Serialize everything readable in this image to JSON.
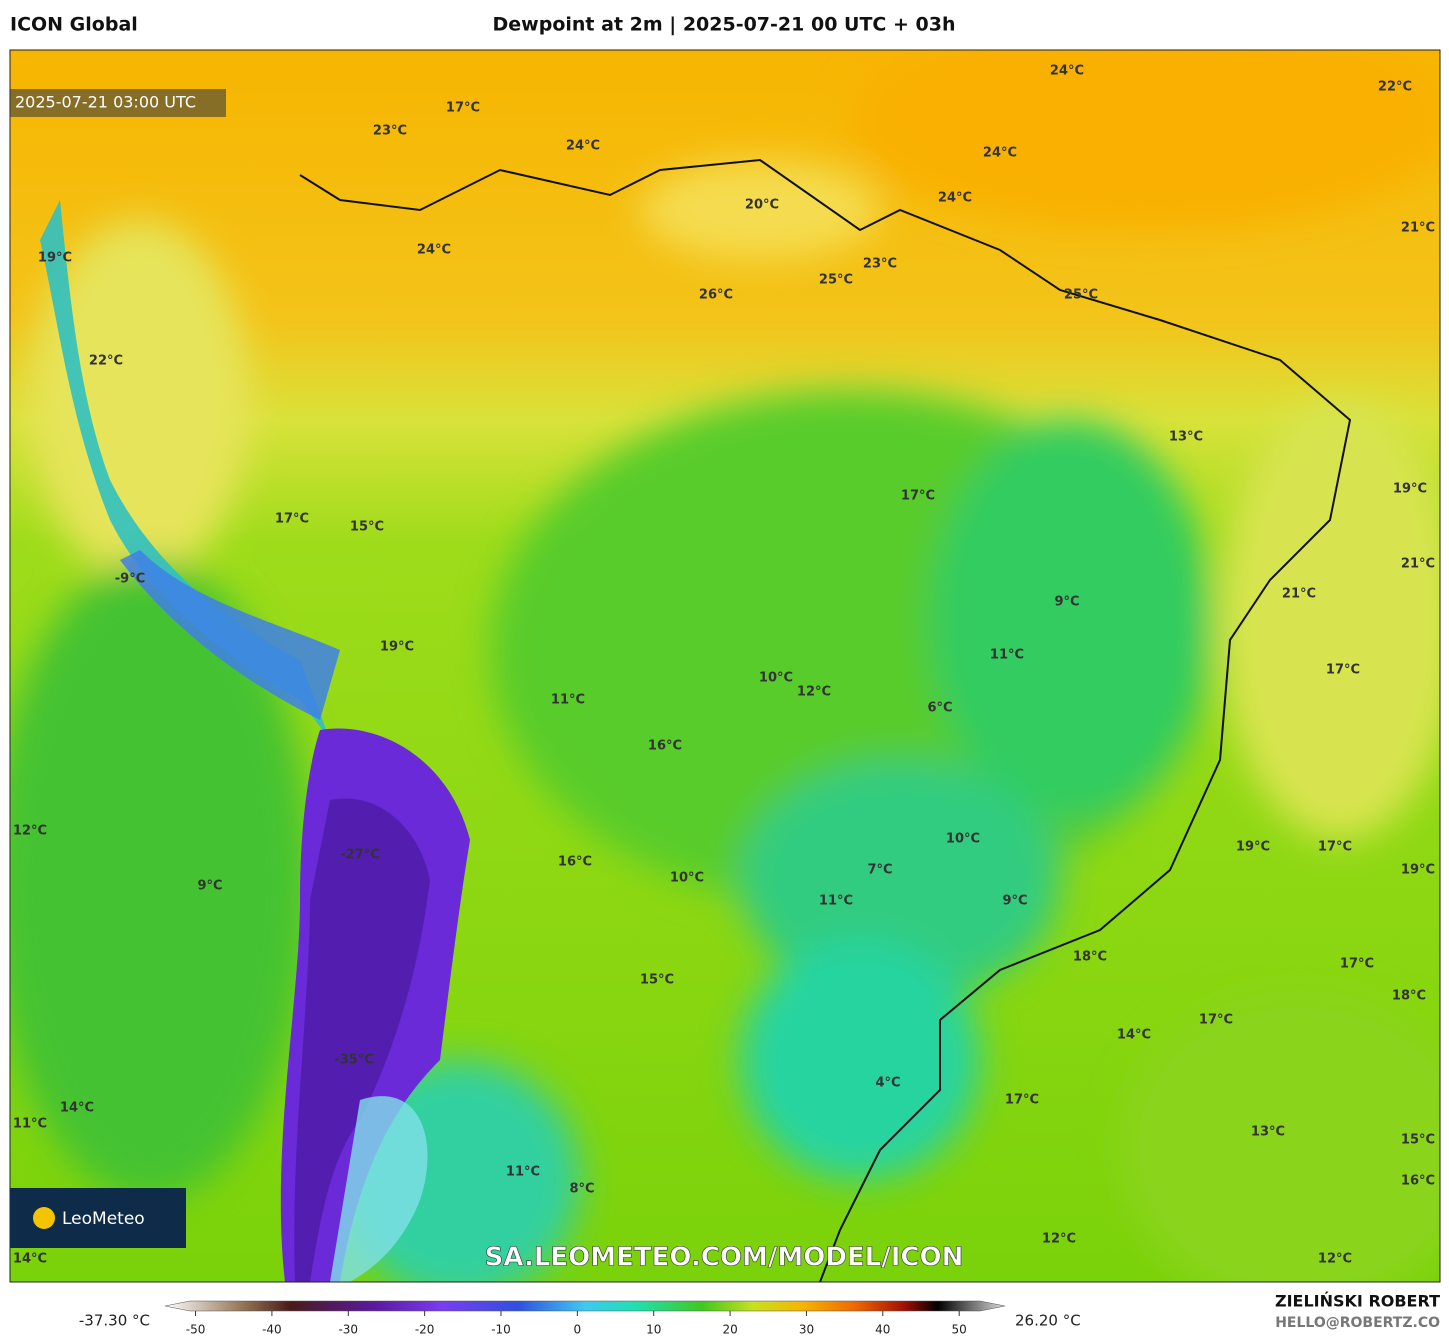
{
  "header": {
    "source": "ICON Global",
    "title": "Dewpoint at 2m | 2025-07-21 00 UTC + 03h"
  },
  "map": {
    "valid_time": "2025-07-21 03:00 UTC",
    "watermark": "SA.LEOMETEO.COM/MODEL/ICON",
    "logo": "LeoMeteo",
    "labels": [
      "17°C",
      "23°C",
      "24°C",
      "24°C",
      "22°C",
      "24°C",
      "24°C",
      "20°C",
      "21°C",
      "24°C",
      "19°C",
      "23°C",
      "25°C",
      "26°C",
      "25°C",
      "22°C",
      "13°C",
      "17°C",
      "19°C",
      "17°C",
      "15°C",
      "21°C",
      "-9°C",
      "21°C",
      "9°C",
      "19°C",
      "11°C",
      "17°C",
      "10°C",
      "12°C",
      "11°C",
      "6°C",
      "16°C",
      "12°C",
      "-27°C",
      "10°C",
      "19°C",
      "17°C",
      "16°C",
      "7°C",
      "19°C",
      "10°C",
      "9°C",
      "11°C",
      "9°C",
      "18°C",
      "17°C",
      "15°C",
      "18°C",
      "17°C",
      "14°C",
      "-35°C",
      "4°C",
      "17°C",
      "14°C",
      "11°C",
      "15°C",
      "13°C",
      "11°C",
      "16°C",
      "8°C",
      "12°C",
      "12°C",
      "14°C"
    ]
  },
  "colorbar": {
    "min_label": "-37.30 °C",
    "max_label": "26.20 °C",
    "range": [
      -54,
      56
    ],
    "ticks": [
      -50,
      -40,
      -30,
      -20,
      -10,
      0,
      10,
      20,
      30,
      40,
      50
    ]
  },
  "footer": {
    "author": "ZIELIŃSKI ROBERT",
    "contact": "HELLO@ROBERTZ.CO"
  }
}
